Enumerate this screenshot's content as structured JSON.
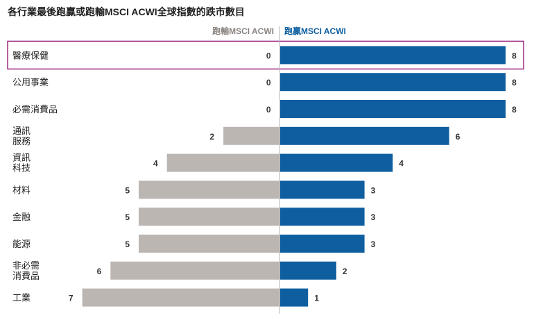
{
  "chart_data": {
    "type": "bar",
    "orientation": "diverging-horizontal",
    "title": "各行業最後跑贏或跑輸MSCI ACWI全球指數的跌市數目",
    "legend": {
      "left": "跑輸MSCI ACWI",
      "right": "跑贏MSCI ACWI"
    },
    "categories": [
      [
        "醫療保健"
      ],
      [
        "公用事業"
      ],
      [
        "必需消費品"
      ],
      [
        "通訊",
        "服務"
      ],
      [
        "資訊",
        "科技"
      ],
      [
        "材料"
      ],
      [
        "金融"
      ],
      [
        "能源"
      ],
      [
        "非必需",
        "消費品"
      ],
      [
        "工業"
      ]
    ],
    "series": [
      {
        "name": "跑輸MSCI ACWI",
        "values": [
          0,
          0,
          0,
          2,
          4,
          5,
          5,
          5,
          6,
          7
        ]
      },
      {
        "name": "跑贏MSCI ACWI",
        "values": [
          8,
          8,
          8,
          6,
          4,
          3,
          3,
          3,
          2,
          1
        ]
      }
    ],
    "highlighted_category": "醫療保健",
    "xlim": [
      -8,
      8
    ],
    "grid": false,
    "legend_position": "top-center"
  },
  "colors": {
    "underperform": "#bcb6b2",
    "outperform": "#0f5fa0",
    "highlight_border": "#9e2a84",
    "divider": "#b8b8b8"
  }
}
